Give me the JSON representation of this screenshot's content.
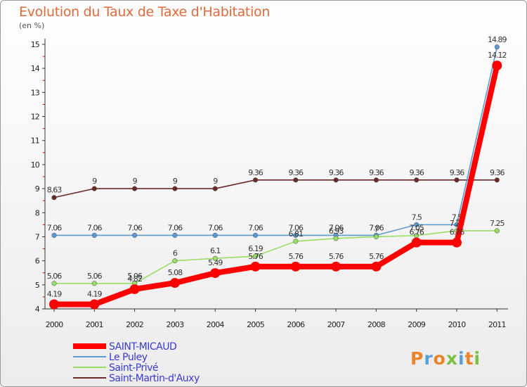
{
  "title": "Evolution du Taux de Taxe d'Habitation",
  "unit": "(en %)",
  "brand": "Proxiti",
  "chart_data": {
    "type": "line",
    "title": "Evolution du Taux de Taxe d'Habitation",
    "ylabel": "(en %)",
    "xlabel": "",
    "x": [
      2000,
      2001,
      2002,
      2003,
      2004,
      2005,
      2006,
      2007,
      2008,
      2009,
      2010,
      2011
    ],
    "ylim": [
      4,
      15
    ],
    "yticks": [
      4,
      5,
      6,
      7,
      8,
      9,
      10,
      11,
      12,
      13,
      14,
      15
    ],
    "series": [
      {
        "name": "Saint-Martin-d'Auxy",
        "color": "#6b2a2a",
        "labels": [
          "8.63",
          "9",
          "9",
          "9",
          "9",
          "9.36",
          "9.36",
          "9.36",
          "9.36",
          "9.36",
          "9.36",
          "9.36"
        ],
        "values": [
          8.63,
          9,
          9,
          9,
          9,
          9.36,
          9.36,
          9.36,
          9.36,
          9.36,
          9.36,
          9.36
        ]
      },
      {
        "name": "Le Puley",
        "color": "#5b9bd5",
        "labels": [
          "7.06",
          "7.06",
          "7.06",
          "7.06",
          "7.06",
          "7.06",
          "7.06",
          "7.06",
          "7.06",
          "7.5",
          "7.5",
          "14.89"
        ],
        "values": [
          7.06,
          7.06,
          7.06,
          7.06,
          7.06,
          7.06,
          7.06,
          7.06,
          7.06,
          7.5,
          7.5,
          14.89
        ]
      },
      {
        "name": "Saint-Privé",
        "color": "#99dd66",
        "labels": [
          "5.06",
          "5.06",
          "5.06",
          "6",
          "6.1",
          "6.19",
          "6.81",
          "6.93",
          "7",
          "7.05",
          "7.25",
          "7.25"
        ],
        "values": [
          5.06,
          5.06,
          5.06,
          6,
          6.1,
          6.19,
          6.81,
          6.93,
          7,
          7.05,
          7.25,
          7.25
        ]
      },
      {
        "name": "SAINT-MICAUD",
        "color": "#ff0000",
        "labels": [
          "4.19",
          "4.19",
          "4.82",
          "5.08",
          "5.49",
          "5.76",
          "5.76",
          "5.76",
          "5.76",
          "6.76",
          "6.76",
          "14.12"
        ],
        "values": [
          4.19,
          4.19,
          4.82,
          5.08,
          5.49,
          5.76,
          5.76,
          5.76,
          5.76,
          6.76,
          6.76,
          14.12
        ]
      }
    ],
    "legend": [
      {
        "name": "SAINT-MICAUD",
        "color": "#ff0000"
      },
      {
        "name": "Le Puley",
        "color": "#5b9bd5"
      },
      {
        "name": "Saint-Privé",
        "color": "#99dd66"
      },
      {
        "name": "Saint-Martin-d'Auxy",
        "color": "#6b2a2a"
      }
    ],
    "legend_position": "bottom-left"
  }
}
